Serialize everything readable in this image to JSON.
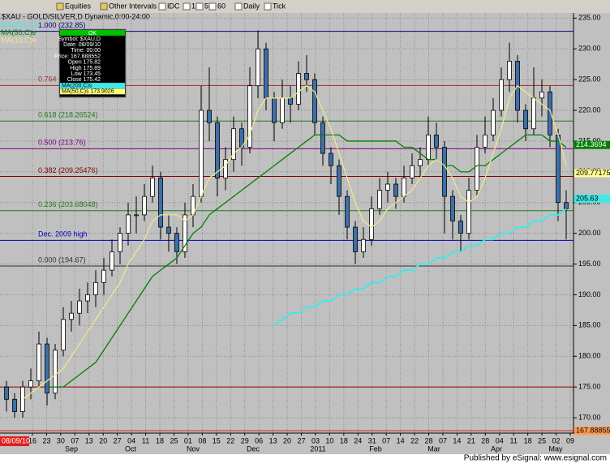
{
  "toolbar": {
    "items": [
      "Equities",
      "Other Intervals",
      "IDC",
      "1",
      "5",
      "60",
      "Daily",
      "Tick"
    ]
  },
  "chart_data": {
    "type": "candlestick",
    "title": "$XAU - GOLD/SILVER,D Dynamic,0:00-24:00",
    "ylim": [
      167.5,
      236.1
    ],
    "yticks": [
      {
        "value": 170,
        "label": "170.00"
      },
      {
        "value": 175,
        "label": "175.00"
      },
      {
        "value": 180,
        "label": "180.00"
      },
      {
        "value": 185,
        "label": "185.00"
      },
      {
        "value": 190,
        "label": "190.00"
      },
      {
        "value": 195,
        "label": "195.00"
      },
      {
        "value": 200,
        "label": "200.00"
      },
      {
        "value": 205,
        "label": "205.00"
      },
      {
        "value": 210,
        "label": "210.00"
      },
      {
        "value": 215,
        "label": "215.00"
      },
      {
        "value": 220,
        "label": "220.00"
      },
      {
        "value": 225,
        "label": "225.00"
      },
      {
        "value": 230,
        "label": "230.00"
      },
      {
        "value": 235,
        "label": "235.00"
      }
    ],
    "grid": true,
    "start_label": "08/09/10",
    "x_labels": [
      "16",
      "23",
      "30",
      "07",
      "13",
      "20",
      "27",
      "04",
      "11",
      "18",
      "25",
      "01",
      "08",
      "15",
      "22",
      "29",
      "06",
      "13",
      "20",
      "27",
      "03",
      "10",
      "18",
      "24",
      "31",
      "07",
      "14",
      "22",
      "28",
      "07",
      "14",
      "21",
      "28",
      "04",
      "11",
      "18",
      "25",
      "02",
      "09"
    ],
    "month_labels": [
      "Sep",
      "Oct",
      "Nov",
      "Dec",
      "2011",
      "Feb",
      "Mar",
      "Apr",
      "May"
    ],
    "series": [
      {
        "name": "$XAU,D",
        "up_color": "#ffffff",
        "down_color": "#3d70a8",
        "values": [
          [
            175,
            176,
            171,
            173
          ],
          [
            173,
            174,
            170,
            171
          ],
          [
            171,
            176,
            170,
            175
          ],
          [
            175,
            178,
            173,
            176
          ],
          [
            176,
            184,
            175,
            182
          ],
          [
            182,
            183,
            172,
            174
          ],
          [
            174,
            182,
            173,
            181
          ],
          [
            181,
            188,
            180,
            186
          ],
          [
            186,
            189,
            184,
            187
          ],
          [
            187,
            191,
            185,
            189
          ],
          [
            189,
            192,
            187,
            190
          ],
          [
            190,
            194,
            188,
            192
          ],
          [
            192,
            196,
            190,
            194
          ],
          [
            194,
            199,
            193,
            197
          ],
          [
            197,
            201,
            195,
            200
          ],
          [
            200,
            205,
            198,
            203
          ],
          [
            203,
            206,
            200,
            203
          ],
          [
            203,
            208,
            202,
            206
          ],
          [
            206,
            211,
            205,
            209
          ],
          [
            209,
            210,
            199,
            201
          ],
          [
            201,
            203,
            197,
            200
          ],
          [
            200,
            201,
            195,
            197
          ],
          [
            197,
            205,
            196,
            203
          ],
          [
            203,
            208,
            201,
            206
          ],
          [
            206,
            224,
            205,
            220
          ],
          [
            220,
            227,
            215,
            218
          ],
          [
            218,
            219,
            206,
            209
          ],
          [
            209,
            214,
            207,
            212
          ],
          [
            212,
            219,
            210,
            217
          ],
          [
            217,
            218,
            211,
            214
          ],
          [
            214,
            227,
            213,
            224
          ],
          [
            224,
            233,
            222,
            230
          ],
          [
            230,
            231,
            220,
            222
          ],
          [
            222,
            223,
            215,
            218
          ],
          [
            218,
            225,
            217,
            222
          ],
          [
            222,
            224,
            218,
            221
          ],
          [
            221,
            228,
            220,
            226
          ],
          [
            226,
            229,
            223,
            225
          ],
          [
            225,
            226,
            216,
            218
          ],
          [
            218,
            219,
            211,
            213
          ],
          [
            213,
            214,
            208,
            211
          ],
          [
            211,
            212,
            203,
            206
          ],
          [
            206,
            207,
            199,
            201
          ],
          [
            201,
            202,
            195,
            197
          ],
          [
            197,
            201,
            196,
            199
          ],
          [
            199,
            206,
            198,
            204
          ],
          [
            204,
            209,
            203,
            207
          ],
          [
            207,
            210,
            205,
            208
          ],
          [
            208,
            209,
            204,
            206
          ],
          [
            206,
            211,
            205,
            209
          ],
          [
            209,
            213,
            208,
            211
          ],
          [
            211,
            214,
            209,
            212
          ],
          [
            212,
            219,
            211,
            216
          ],
          [
            216,
            218,
            212,
            214
          ],
          [
            214,
            215,
            200,
            206
          ],
          [
            206,
            207,
            199,
            202
          ],
          [
            202,
            203,
            197,
            200
          ],
          [
            200,
            209,
            199,
            207
          ],
          [
            207,
            216,
            206,
            214
          ],
          [
            214,
            219,
            213,
            216
          ],
          [
            216,
            222,
            215,
            220
          ],
          [
            220,
            227,
            219,
            225
          ],
          [
            225,
            231,
            223,
            228
          ],
          [
            228,
            229,
            218,
            220
          ],
          [
            220,
            221,
            215,
            217
          ],
          [
            217,
            227,
            216,
            222
          ],
          [
            222,
            225,
            219,
            223
          ],
          [
            223,
            224,
            214,
            216
          ],
          [
            216,
            217,
            202,
            205
          ],
          [
            205,
            207,
            199,
            204
          ]
        ]
      }
    ],
    "lines": [
      {
        "name": "MA(200,C)s",
        "color": "#40e8e8",
        "values": [
          null,
          null,
          null,
          null,
          null,
          null,
          null,
          null,
          null,
          null,
          null,
          null,
          null,
          null,
          null,
          null,
          null,
          null,
          null,
          null,
          null,
          null,
          null,
          null,
          null,
          null,
          null,
          null,
          null,
          null,
          null,
          null,
          null,
          185,
          186,
          187,
          187,
          188,
          188,
          189,
          189,
          190,
          190,
          191,
          191,
          192,
          192,
          193,
          193,
          194,
          194,
          195,
          195,
          196,
          196,
          197,
          197,
          198,
          198,
          199,
          199,
          200,
          200,
          201,
          201,
          202,
          202,
          203,
          203,
          204
        ]
      },
      {
        "name": "MA(50,C)e",
        "color": "#008000",
        "values": [
          null,
          null,
          null,
          null,
          null,
          175,
          175,
          175,
          176,
          177,
          178,
          179,
          181,
          183,
          185,
          187,
          189,
          191,
          193,
          194,
          195,
          196,
          198,
          200,
          201,
          203,
          204,
          205,
          206,
          207,
          208,
          209,
          210,
          211,
          212,
          213,
          214,
          215,
          216,
          216,
          216,
          216,
          215,
          215,
          215,
          215,
          215,
          215,
          215,
          214,
          214,
          213,
          212,
          212,
          211,
          211,
          210,
          210,
          211,
          211,
          212,
          213,
          214,
          215,
          216,
          216,
          216,
          215,
          215,
          214
        ]
      },
      {
        "name": "MA(10,C)e",
        "color": "#f0e68c",
        "values": [
          null,
          null,
          173,
          174,
          175,
          176,
          177,
          178,
          180,
          182,
          184,
          186,
          188,
          190,
          192,
          195,
          197,
          199,
          202,
          203,
          203,
          203,
          202,
          203,
          206,
          209,
          210,
          211,
          213,
          214,
          216,
          220,
          222,
          222,
          222,
          222,
          223,
          224,
          223,
          220,
          217,
          213,
          209,
          205,
          202,
          201,
          202,
          204,
          205,
          206,
          207,
          209,
          211,
          212,
          211,
          209,
          206,
          205,
          206,
          209,
          213,
          217,
          222,
          224,
          223,
          222,
          221,
          220,
          216,
          211
        ]
      }
    ],
    "levels": [
      {
        "label": "1.000 (232.85)",
        "value": 232.85,
        "color": "#000080"
      },
      {
        "label": "0.764",
        "value": 224.05,
        "color": "#a03030"
      },
      {
        "label": "0.618 (218.26524)",
        "value": 218.26524,
        "color": "#1f7a1f"
      },
      {
        "label": "0.500 (213.76)",
        "value": 213.76,
        "color": "#800080"
      },
      {
        "label": "0.382 (209.25476)",
        "value": 209.25476,
        "color": "#800000"
      },
      {
        "label": "0.236 (203.68048)",
        "value": 203.68048,
        "color": "#1f7a1f"
      },
      {
        "label": "Dec. 2009 high",
        "value": 198.85,
        "color": "#0000c0"
      },
      {
        "label": "0.000 (194.67)",
        "value": 194.67,
        "color": "#303030"
      },
      {
        "value": 175,
        "color": "#a00000"
      },
      {
        "value": 167.888552,
        "color": "#d02020"
      }
    ],
    "price_tags": [
      {
        "value": 214.3694,
        "color": "#008000"
      },
      {
        "value": 209.771758,
        "color": "#ffff90"
      },
      {
        "value": 205.63,
        "color": "#40e8e8"
      },
      {
        "value": 167.888552,
        "color": "#ff9a50"
      }
    ],
    "info_box": {
      "header": "OK",
      "lines": [
        "Symbol: $XAU,D",
        "Date: 08/09/10",
        "Time: 00:00",
        "Price: 167.888552",
        "Open 175.82",
        "High 175.89",
        "Low 173.45",
        "Close 175.42",
        "MA(200,C)s",
        "MA(50,C)s 173.9026"
      ]
    }
  },
  "footer": "Published by eSignal: www.esignal.com"
}
